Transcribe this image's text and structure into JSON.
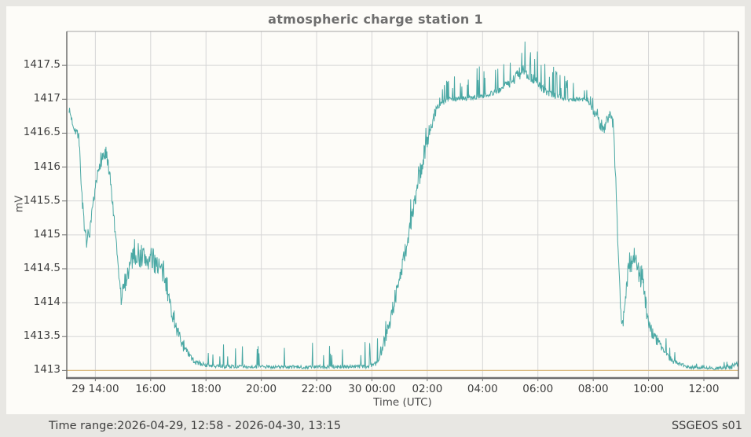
{
  "status_bar": {
    "time_range": "Time range:2026-04-29, 12:58 - 2026-04-30, 13:15",
    "source": "SSGEOS s01"
  },
  "colors": {
    "line": "#4aa8a4",
    "baseline": "#d9b87a",
    "grid": "#d6d6d6",
    "frame": "#6e6e6e",
    "frame_top": "#a5a5a5",
    "tick_text": "#3f3f3f",
    "title_text": "#6e6e6e",
    "panel_bg": "#fdfcf8",
    "page_bg": "#e8e7e3"
  },
  "chart_data": {
    "type": "line",
    "title": "atmospheric charge station 1",
    "xlabel": "Time (UTC)",
    "ylabel": "mV",
    "x_start_label": "2026-04-29, 12:58",
    "x_end_label": "2026-04-30, 13:15",
    "x_total_minutes": 1457,
    "ylim": [
      1412.9,
      1418.0
    ],
    "grid": true,
    "legend": "none",
    "baseline": {
      "value": 1413,
      "color": "#d9b87a"
    },
    "line_color": "#4aa8a4",
    "x_ticks": [
      {
        "label": "29 14:00",
        "t": 62
      },
      {
        "label": "16:00",
        "t": 182
      },
      {
        "label": "18:00",
        "t": 302
      },
      {
        "label": "20:00",
        "t": 422
      },
      {
        "label": "22:00",
        "t": 542
      },
      {
        "label": "30 00:00",
        "t": 662
      },
      {
        "label": "02:00",
        "t": 782
      },
      {
        "label": "04:00",
        "t": 902
      },
      {
        "label": "06:00",
        "t": 1022
      },
      {
        "label": "08:00",
        "t": 1142
      },
      {
        "label": "10:00",
        "t": 1262
      },
      {
        "label": "12:00",
        "t": 1382
      }
    ],
    "y_ticks": [
      1413,
      1413.5,
      1414,
      1414.5,
      1415,
      1415.5,
      1416,
      1416.5,
      1417,
      1417.5
    ],
    "render": {
      "seed": 7,
      "step_minutes": 1
    },
    "series": [
      {
        "name": "station 1 atmospheric charge (mV)",
        "points_format": [
          "minutes_from_start",
          "mV",
          "noise_halfband_mV",
          "spike_max_mV",
          "spike_probability"
        ],
        "points": [
          [
            5,
            1416.85,
            0.05,
            0,
            0
          ],
          [
            14,
            1416.62,
            0.07,
            0,
            0.02
          ],
          [
            26,
            1416.45,
            0.09,
            0.05,
            0.03
          ],
          [
            32,
            1415.7,
            0.1,
            0.05,
            0.03
          ],
          [
            39,
            1414.95,
            0.14,
            0.08,
            0.04
          ],
          [
            49,
            1414.95,
            0.14,
            0.08,
            0.04
          ],
          [
            60,
            1415.55,
            0.12,
            0.05,
            0.03
          ],
          [
            72,
            1416.1,
            0.13,
            0.08,
            0.04
          ],
          [
            85,
            1416.2,
            0.15,
            0.08,
            0.04
          ],
          [
            97,
            1415.65,
            0.12,
            0.05,
            0.03
          ],
          [
            107,
            1414.85,
            0.1,
            0.08,
            0.04
          ],
          [
            118,
            1414.05,
            0.12,
            0.1,
            0.05
          ],
          [
            128,
            1414.35,
            0.15,
            0.1,
            0.05
          ],
          [
            145,
            1414.75,
            0.2,
            0.1,
            0.05
          ],
          [
            170,
            1414.65,
            0.2,
            0.1,
            0.05
          ],
          [
            196,
            1414.6,
            0.18,
            0.1,
            0.05
          ],
          [
            213,
            1414.35,
            0.15,
            0.12,
            0.05
          ],
          [
            233,
            1413.7,
            0.1,
            0.2,
            0.06
          ],
          [
            256,
            1413.3,
            0.07,
            0.25,
            0.06
          ],
          [
            278,
            1413.12,
            0.04,
            0.3,
            0.06
          ],
          [
            315,
            1413.06,
            0.025,
            0.33,
            0.065
          ],
          [
            500,
            1413.05,
            0.025,
            0.36,
            0.07
          ],
          [
            656,
            1413.06,
            0.03,
            0.36,
            0.07
          ],
          [
            672,
            1413.12,
            0.05,
            0.3,
            0.08
          ],
          [
            688,
            1413.4,
            0.1,
            0.3,
            0.08
          ],
          [
            705,
            1413.85,
            0.13,
            0.28,
            0.08
          ],
          [
            722,
            1414.35,
            0.15,
            0.25,
            0.08
          ],
          [
            740,
            1414.95,
            0.16,
            0.25,
            0.08
          ],
          [
            756,
            1415.5,
            0.16,
            0.22,
            0.08
          ],
          [
            772,
            1416.1,
            0.14,
            0.2,
            0.08
          ],
          [
            788,
            1416.55,
            0.1,
            0.18,
            0.09
          ],
          [
            804,
            1416.9,
            0.06,
            0.18,
            0.1
          ],
          [
            826,
            1417.0,
            0.035,
            0.3,
            0.12
          ],
          [
            880,
            1417.02,
            0.035,
            0.42,
            0.12
          ],
          [
            930,
            1417.1,
            0.045,
            0.45,
            0.13
          ],
          [
            963,
            1417.25,
            0.07,
            0.5,
            0.15
          ],
          [
            988,
            1417.42,
            0.1,
            0.52,
            0.18
          ],
          [
            1012,
            1417.3,
            0.08,
            0.45,
            0.15
          ],
          [
            1040,
            1417.1,
            0.05,
            0.45,
            0.12
          ],
          [
            1082,
            1417.0,
            0.035,
            0.35,
            0.12
          ],
          [
            1130,
            1417.0,
            0.035,
            0.18,
            0.1
          ],
          [
            1152,
            1416.7,
            0.08,
            0.1,
            0.06
          ],
          [
            1165,
            1416.55,
            0.1,
            0.08,
            0.05
          ],
          [
            1178,
            1416.82,
            0.09,
            0.05,
            0.04
          ],
          [
            1186,
            1416.6,
            0.1,
            0,
            0
          ],
          [
            1191,
            1415.8,
            0.15,
            0,
            0
          ],
          [
            1196,
            1414.8,
            0.15,
            0,
            0
          ],
          [
            1202,
            1413.85,
            0.13,
            0.08,
            0.04
          ],
          [
            1207,
            1413.7,
            0.12,
            0.1,
            0.05
          ],
          [
            1219,
            1414.55,
            0.18,
            0.12,
            0.06
          ],
          [
            1230,
            1414.7,
            0.2,
            0.12,
            0.06
          ],
          [
            1241,
            1414.4,
            0.18,
            0.1,
            0.05
          ],
          [
            1249,
            1414.4,
            0.18,
            0.1,
            0.05
          ],
          [
            1258,
            1413.85,
            0.14,
            0.12,
            0.05
          ],
          [
            1270,
            1413.55,
            0.1,
            0.15,
            0.06
          ],
          [
            1288,
            1413.35,
            0.07,
            0.18,
            0.06
          ],
          [
            1312,
            1413.15,
            0.04,
            0.18,
            0.06
          ],
          [
            1346,
            1413.05,
            0.025,
            0.1,
            0.06
          ],
          [
            1400,
            1413.03,
            0.02,
            0.07,
            0.06
          ],
          [
            1440,
            1413.05,
            0.035,
            0.08,
            0.06
          ],
          [
            1457,
            1413.1,
            0.05,
            0,
            0
          ]
        ]
      }
    ]
  }
}
